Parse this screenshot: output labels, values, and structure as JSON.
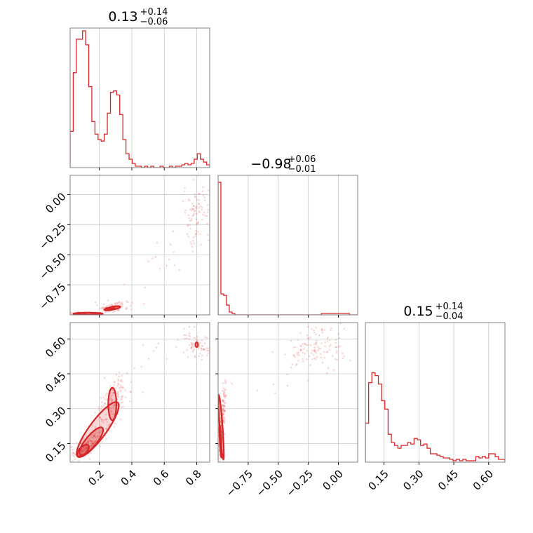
{
  "chart_data": {
    "type": "corner",
    "color": "#d62728",
    "parameters": [
      {
        "title": {
          "median": "0.13",
          "plus": "+0.14",
          "minus": "−0.06"
        },
        "range": [
          0.02,
          0.88
        ],
        "ticks": [
          0.2,
          0.4,
          0.6,
          0.8
        ],
        "tick_labels": [
          "0.2",
          "0.4",
          "0.6",
          "0.8"
        ],
        "hist": [
          0.26,
          0.68,
          0.92,
          0.92,
          0.98,
          0.88,
          0.58,
          0.33,
          0.24,
          0.2,
          0.19,
          0.24,
          0.39,
          0.54,
          0.55,
          0.52,
          0.38,
          0.2,
          0.1,
          0.06,
          0.03,
          0.01,
          0.01,
          0.0,
          0.01,
          0.0,
          0.01,
          0.0,
          0.0,
          0.01,
          0.0,
          0.0,
          0.01,
          0.0,
          0.01,
          0.01,
          0.02,
          0.03,
          0.02,
          0.03,
          0.06,
          0.1,
          0.06,
          0.04,
          0.02
        ]
      },
      {
        "title": {
          "median": "−0.98",
          "plus": "+0.06",
          "minus": "−0.01"
        },
        "range": [
          -1.0,
          0.16
        ],
        "ticks": [
          -0.75,
          -0.5,
          -0.25,
          0.0
        ],
        "tick_labels": [
          "−0.75",
          "−0.50",
          "−0.25",
          "0.00"
        ],
        "hist": [
          0.95,
          0.15,
          0.14,
          0.07,
          0.02,
          0.01,
          0.0,
          0.0,
          0.0,
          0.0,
          0.0,
          0.0,
          0.0,
          0.0,
          0.0,
          0.0,
          0.0,
          0.0,
          0.0,
          0.0,
          0.0,
          0.0,
          0.0,
          0.0,
          0.0,
          0.0,
          0.0,
          0.0,
          0.0,
          0.0,
          0.0,
          0.0,
          0.0,
          0.0,
          0.0,
          0.0,
          0.0,
          0.01,
          0.01,
          0.01,
          0.01,
          0.01,
          0.01,
          0.01,
          0.01,
          0.01,
          0.01,
          0.0,
          0.0,
          0.0
        ]
      },
      {
        "title": {
          "median": "0.15",
          "plus": "+0.14",
          "minus": "−0.04"
        },
        "range": [
          0.07,
          0.67
        ],
        "ticks": [
          0.15,
          0.3,
          0.45,
          0.6
        ],
        "tick_labels": [
          "0.15",
          "0.30",
          "0.45",
          "0.60"
        ],
        "hist": [
          0.28,
          0.57,
          0.64,
          0.62,
          0.56,
          0.44,
          0.38,
          0.2,
          0.14,
          0.12,
          0.1,
          0.12,
          0.12,
          0.14,
          0.13,
          0.17,
          0.16,
          0.12,
          0.13,
          0.1,
          0.06,
          0.06,
          0.05,
          0.04,
          0.03,
          0.03,
          0.02,
          0.01,
          0.02,
          0.01,
          0.02,
          0.01,
          0.01,
          0.01,
          0.04,
          0.03,
          0.04,
          0.03,
          0.06,
          0.06,
          0.04,
          0.02,
          0.02
        ]
      }
    ]
  }
}
